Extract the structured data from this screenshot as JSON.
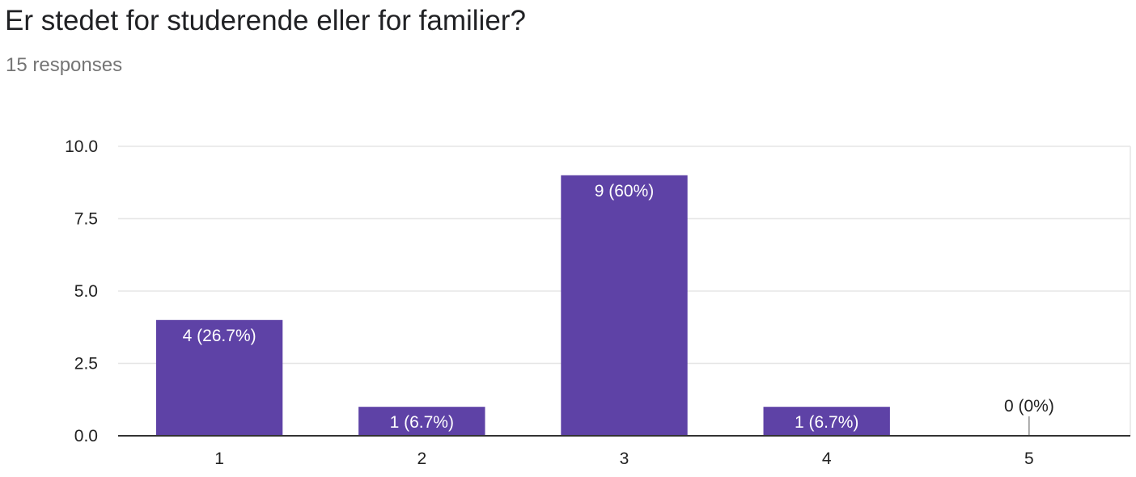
{
  "question": {
    "title": "Er stedet for studerende eller for familier?",
    "responses": "15 responses"
  },
  "chart_data": {
    "type": "bar",
    "title": "Er stedet for studerende eller for familier?",
    "categories": [
      "1",
      "2",
      "3",
      "4",
      "5"
    ],
    "values": [
      4,
      1,
      9,
      1,
      0
    ],
    "data_labels": [
      "4 (26.7%)",
      "1 (6.7%)",
      "9 (60%)",
      "1 (6.7%)",
      "0 (0%)"
    ],
    "ylim": [
      0,
      10
    ],
    "yticks": [
      "0.0",
      "2.5",
      "5.0",
      "7.5",
      "10.0"
    ],
    "ytick_values": [
      0,
      2.5,
      5,
      7.5,
      10
    ],
    "grid": true,
    "xlabel": "",
    "ylabel": "",
    "colors": {
      "bar": "#5e42a6",
      "grid": "#e6e6e6",
      "axis": "#333333",
      "label_inside": "#ffffff",
      "label_outside": "#222222"
    }
  }
}
